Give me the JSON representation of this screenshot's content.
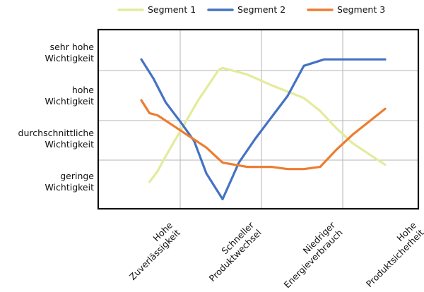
{
  "chart_data": {
    "type": "line",
    "categories": [
      "Hohe Zuverlässigkeit",
      "Schneller Produktwechsel",
      "Niedriger Energieverbrauch",
      "Hohe Produktsicherheit"
    ],
    "category_lines": [
      [
        "Hohe",
        "Zuverlässigkeit"
      ],
      [
        "Schneller",
        "Produktwechsel"
      ],
      [
        "Niedriger",
        "Energieverbrauch"
      ],
      [
        "Hohe",
        "Produktsicherheit"
      ]
    ],
    "y_levels": [
      {
        "value": 1,
        "lines": [
          "geringe",
          "Wichtigkeit"
        ]
      },
      {
        "value": 2,
        "lines": [
          "durchschnittliche",
          "Wichtigkeit"
        ]
      },
      {
        "value": 3,
        "lines": [
          "hohe",
          "Wichtigkeit"
        ]
      },
      {
        "value": 4,
        "lines": [
          "sehr hohe",
          "Wichtigkeit"
        ]
      }
    ],
    "ylim": [
      0.5,
      4.5
    ],
    "grid": true,
    "legend_position": "top",
    "series": [
      {
        "name": "Segment 1",
        "color": "#e4eb9b",
        "x": [
          0.1,
          0.2,
          0.3,
          0.5,
          0.7,
          0.95,
          1.0,
          1.3,
          1.6,
          1.8,
          2.0,
          2.2,
          2.4,
          2.6,
          2.8,
          3.0
        ],
        "y": [
          1.0,
          1.25,
          1.6,
          2.25,
          2.9,
          3.6,
          3.65,
          3.5,
          3.25,
          3.1,
          2.95,
          2.65,
          2.25,
          1.9,
          1.65,
          1.4
        ]
      },
      {
        "name": "Segment 2",
        "color": "#4472c4",
        "x": [
          0.0,
          0.15,
          0.3,
          0.5,
          0.65,
          0.8,
          1.0,
          1.2,
          1.4,
          1.6,
          1.8,
          2.0,
          2.25,
          2.5,
          2.75,
          3.0
        ],
        "y": [
          3.85,
          3.4,
          2.85,
          2.35,
          1.95,
          1.2,
          0.6,
          1.45,
          2.0,
          2.5,
          3.0,
          3.7,
          3.85,
          3.85,
          3.85,
          3.85
        ]
      },
      {
        "name": "Segment 3",
        "color": "#ed7d31",
        "x": [
          0.0,
          0.1,
          0.2,
          0.4,
          0.6,
          0.8,
          1.0,
          1.3,
          1.6,
          1.8,
          2.0,
          2.2,
          2.4,
          2.6,
          2.8,
          3.0
        ],
        "y": [
          2.9,
          2.6,
          2.55,
          2.3,
          2.05,
          1.8,
          1.45,
          1.35,
          1.35,
          1.3,
          1.3,
          1.35,
          1.75,
          2.1,
          2.4,
          2.7
        ]
      }
    ]
  }
}
